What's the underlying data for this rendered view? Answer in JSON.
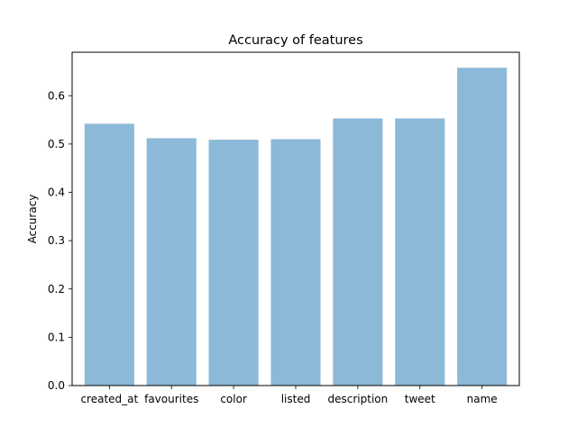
{
  "chart_data": {
    "type": "bar",
    "title": "Accuracy of features",
    "xlabel": "",
    "ylabel": "Accuracy",
    "categories": [
      "created_at",
      "favourites",
      "color",
      "listed",
      "description",
      "tweet",
      "name"
    ],
    "values": [
      0.542,
      0.512,
      0.509,
      0.51,
      0.553,
      0.553,
      0.658
    ],
    "ylim": [
      0,
      0.69
    ],
    "yticks": [
      0.0,
      0.1,
      0.2,
      0.3,
      0.4,
      0.5,
      0.6
    ],
    "ytick_labels": [
      "0.0",
      "0.1",
      "0.2",
      "0.3",
      "0.4",
      "0.5",
      "0.6"
    ],
    "bar_color": "#8db9d9",
    "grid": false,
    "legend": "none"
  }
}
